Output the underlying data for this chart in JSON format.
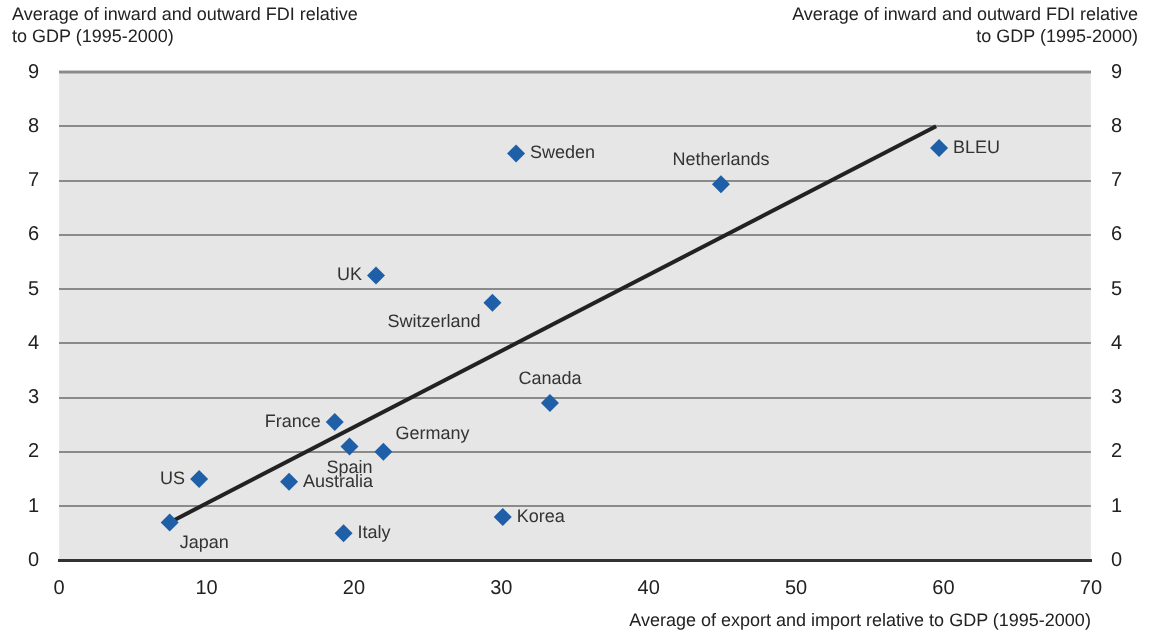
{
  "chart_data": {
    "type": "scatter",
    "ylabel": "Average of inward and outward FDI relative to GDP (1995-2000)",
    "y2label": "Average of inward and outward FDI relative to GDP (1995-2000)",
    "xlabel": "Average of export and import relative to GDP (1995-2000)",
    "xlim": [
      0,
      70
    ],
    "xticks": [
      0,
      10,
      20,
      30,
      40,
      50,
      60,
      70
    ],
    "ylim": [
      0,
      9
    ],
    "yticks": [
      0,
      1,
      2,
      3,
      4,
      5,
      6,
      7,
      8,
      9
    ],
    "y2lim": [
      0,
      9
    ],
    "y2ticks": [
      0,
      1,
      2,
      3,
      4,
      5,
      6,
      7,
      8,
      9
    ],
    "grid": "y",
    "legend": false,
    "marker": "diamond",
    "series": [
      {
        "name": "Japan",
        "color": "#1f5fa8",
        "x": [
          7.5
        ],
        "values": [
          0.7
        ]
      },
      {
        "name": "US",
        "color": "#1f5fa8",
        "x": [
          9.5
        ],
        "values": [
          1.5
        ]
      },
      {
        "name": "Australia",
        "color": "#1f5fa8",
        "x": [
          15.6
        ],
        "values": [
          1.45
        ]
      },
      {
        "name": "Spain",
        "color": "#1f5fa8",
        "x": [
          19.7
        ],
        "values": [
          2.1
        ]
      },
      {
        "name": "France",
        "color": "#1f5fa8",
        "x": [
          18.7
        ],
        "values": [
          2.55
        ]
      },
      {
        "name": "Germany",
        "color": "#1f5fa8",
        "x": [
          22
        ],
        "values": [
          2
        ]
      },
      {
        "name": "Italy",
        "color": "#1f5fa8",
        "x": [
          19.3
        ],
        "values": [
          0.5
        ]
      },
      {
        "name": "UK",
        "color": "#1f5fa8",
        "x": [
          21.5
        ],
        "values": [
          5.25
        ]
      },
      {
        "name": "Switzerland",
        "color": "#1f5fa8",
        "x": [
          29.4
        ],
        "values": [
          4.75
        ]
      },
      {
        "name": "Korea",
        "color": "#1f5fa8",
        "x": [
          30.1
        ],
        "values": [
          0.8
        ]
      },
      {
        "name": "Sweden",
        "color": "#1f5fa8",
        "x": [
          31
        ],
        "values": [
          7.5
        ]
      },
      {
        "name": "Canada",
        "color": "#1f5fa8",
        "x": [
          33.3
        ],
        "values": [
          2.9
        ]
      },
      {
        "name": "Netherlands",
        "color": "#1f5fa8",
        "x": [
          44.9
        ],
        "values": [
          6.93
        ]
      },
      {
        "name": "BLEU",
        "color": "#1f5fa8",
        "x": [
          59.7
        ],
        "values": [
          7.6
        ]
      },
      {
        "type": "line",
        "color": "#222222",
        "x": [
          7.5,
          59.5
        ],
        "values": [
          0.7,
          8.0
        ],
        "marker": "none"
      }
    ]
  }
}
